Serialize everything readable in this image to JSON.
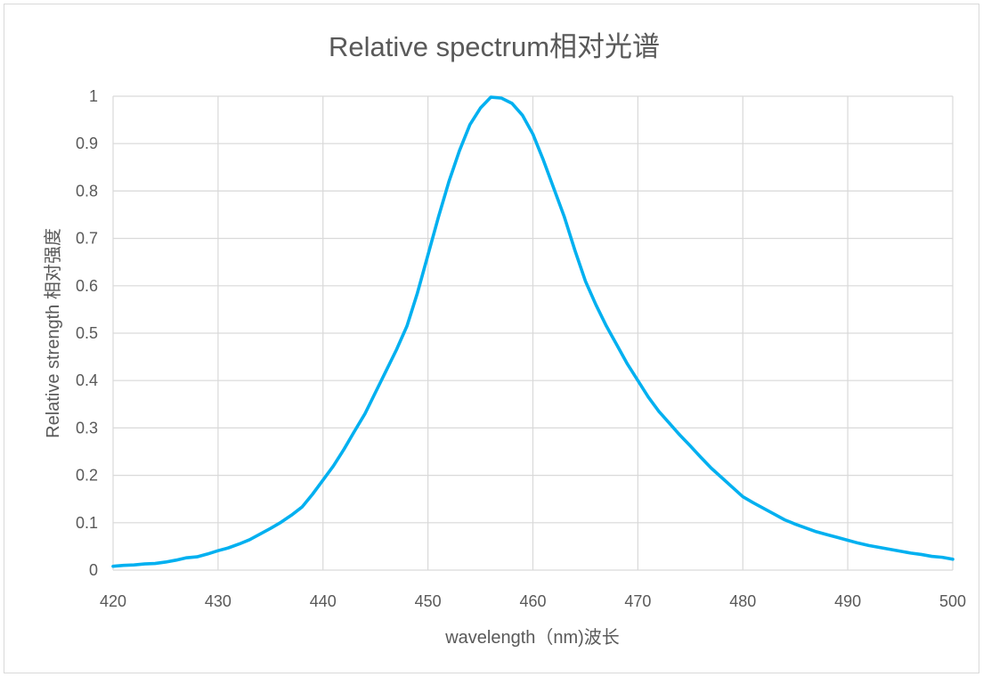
{
  "chart_data": {
    "type": "line",
    "title": "Relative spectrum相对光谱",
    "xlabel": "wavelength（nm)波长",
    "ylabel": "Relative strength 相对强度",
    "xlim": [
      420,
      500
    ],
    "ylim": [
      0,
      1
    ],
    "x_ticks": [
      420,
      430,
      440,
      450,
      460,
      470,
      480,
      490,
      500
    ],
    "y_ticks": [
      0,
      0.1,
      0.2,
      0.3,
      0.4,
      0.5,
      0.6,
      0.7,
      0.8,
      0.9,
      1
    ],
    "grid": true,
    "legend": false,
    "colors": {
      "line": "#00B0F0",
      "grid": "#D9D9D9",
      "border": "#D9D9D9",
      "text": "#595959"
    },
    "series": [
      {
        "color": "#00B0F0",
        "x": [
          420,
          421,
          422,
          423,
          424,
          425,
          426,
          427,
          428,
          429,
          430,
          431,
          432,
          433,
          434,
          435,
          436,
          437,
          438,
          439,
          440,
          441,
          442,
          443,
          444,
          445,
          446,
          447,
          448,
          449,
          450,
          451,
          452,
          453,
          454,
          455,
          456,
          457,
          458,
          459,
          460,
          461,
          462,
          463,
          464,
          465,
          466,
          467,
          468,
          469,
          470,
          471,
          472,
          473,
          474,
          475,
          476,
          477,
          478,
          479,
          480,
          481,
          482,
          483,
          484,
          485,
          486,
          487,
          488,
          489,
          490,
          491,
          492,
          493,
          494,
          495,
          496,
          497,
          498,
          499,
          500
        ],
        "y": [
          0.008,
          0.01,
          0.011,
          0.013,
          0.014,
          0.017,
          0.021,
          0.026,
          0.028,
          0.034,
          0.041,
          0.047,
          0.055,
          0.064,
          0.076,
          0.088,
          0.101,
          0.116,
          0.133,
          0.16,
          0.19,
          0.22,
          0.255,
          0.293,
          0.33,
          0.375,
          0.42,
          0.465,
          0.515,
          0.585,
          0.665,
          0.745,
          0.82,
          0.885,
          0.94,
          0.975,
          0.998,
          0.996,
          0.985,
          0.96,
          0.92,
          0.865,
          0.805,
          0.745,
          0.675,
          0.61,
          0.56,
          0.515,
          0.475,
          0.435,
          0.4,
          0.365,
          0.335,
          0.31,
          0.285,
          0.262,
          0.238,
          0.215,
          0.195,
          0.175,
          0.155,
          0.142,
          0.13,
          0.118,
          0.106,
          0.097,
          0.089,
          0.081,
          0.075,
          0.069,
          0.063,
          0.057,
          0.052,
          0.048,
          0.044,
          0.04,
          0.036,
          0.033,
          0.029,
          0.027,
          0.023
        ]
      }
    ]
  }
}
